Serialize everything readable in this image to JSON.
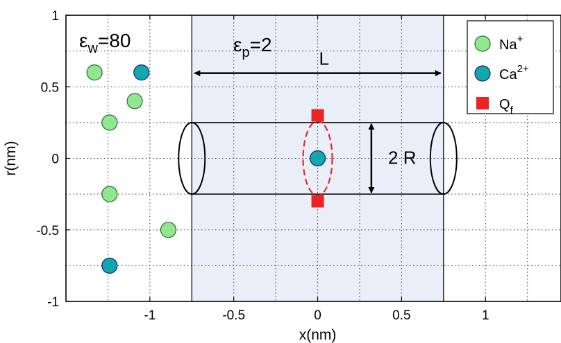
{
  "chart_data": {
    "type": "scatter",
    "xlabel": "x(nm)",
    "ylabel": "r(nm)",
    "xlim": [
      -1.5,
      1.45
    ],
    "ylim": [
      -1,
      1
    ],
    "grid": true,
    "legend_placement": "top-right",
    "x_ticks": [
      -1,
      -0.5,
      0,
      0.5,
      1
    ],
    "x_tick_labels": [
      "-1",
      "-0.5",
      "0",
      "0.5",
      "1"
    ],
    "y_ticks": [
      1,
      0.5,
      0,
      -0.5,
      -1
    ],
    "y_tick_labels": [
      "1",
      "0.5",
      "0",
      "-0.5",
      "-1"
    ],
    "pore_region": {
      "x_range": [
        -0.75,
        0.75
      ],
      "color": "#e9eef9"
    },
    "cylinder": {
      "x_range": [
        -0.75,
        0.75
      ],
      "radius": 0.25
    },
    "series": [
      {
        "name": "Na+",
        "marker": "circle",
        "color": "#8fe88f",
        "points": [
          {
            "x": -1.33,
            "y": 0.6
          },
          {
            "x": -1.09,
            "y": 0.4
          },
          {
            "x": -1.24,
            "y": 0.25
          },
          {
            "x": -1.24,
            "y": -0.25
          },
          {
            "x": -0.89,
            "y": -0.5
          }
        ]
      },
      {
        "name": "Ca2+",
        "marker": "circle",
        "color": "#11a8a8",
        "points": [
          {
            "x": -1.05,
            "y": 0.6
          },
          {
            "x": -1.24,
            "y": -0.75
          },
          {
            "x": 0.0,
            "y": 0.0
          }
        ]
      },
      {
        "name": "Qf",
        "marker": "square",
        "color": "#ee2222",
        "points": [
          {
            "x": 0.0,
            "y": 0.3
          },
          {
            "x": 0.0,
            "y": -0.3
          }
        ]
      }
    ],
    "annotations": {
      "eps_w": {
        "symbol": "ε",
        "sub": "w",
        "value": "=80"
      },
      "eps_p": {
        "symbol": "ε",
        "sub": "p",
        "value": "=2"
      },
      "length": "L",
      "diameter": "2 R"
    },
    "legend": [
      {
        "base": "Na",
        "sup": "+",
        "sub": ""
      },
      {
        "base": "Ca",
        "sup": "2+",
        "sub": ""
      },
      {
        "base": "Q",
        "sup": "",
        "sub": "f"
      }
    ]
  }
}
